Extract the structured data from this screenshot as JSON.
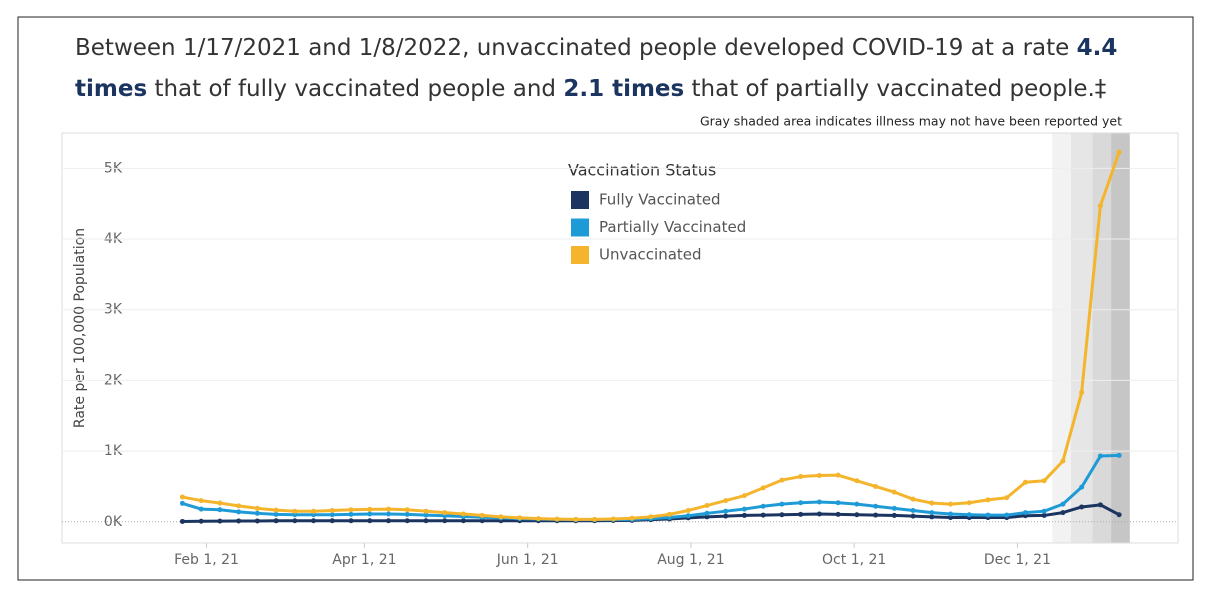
{
  "chart_data": {
    "type": "line",
    "title": [
      "Between 1/17/2021 and 1/8/2022, unvaccinated people developed COVID-19 at a rate ",
      "4.4 times",
      " that of fully vaccinated people and ",
      "2.1 times",
      " that of partially vaccinated people.‡"
    ],
    "annotation": "Gray shaded area indicates illness may not have been reported yet",
    "y_label": "Rate per 100,000 Population",
    "legend_title": "Vaccination Status",
    "x": [
      "2021-01-23",
      "2021-01-30",
      "2021-02-06",
      "2021-02-13",
      "2021-02-20",
      "2021-02-27",
      "2021-03-06",
      "2021-03-13",
      "2021-03-20",
      "2021-03-27",
      "2021-04-03",
      "2021-04-10",
      "2021-04-17",
      "2021-04-24",
      "2021-05-01",
      "2021-05-08",
      "2021-05-15",
      "2021-05-22",
      "2021-05-29",
      "2021-06-05",
      "2021-06-12",
      "2021-06-19",
      "2021-06-26",
      "2021-07-03",
      "2021-07-10",
      "2021-07-17",
      "2021-07-24",
      "2021-07-31",
      "2021-08-07",
      "2021-08-14",
      "2021-08-21",
      "2021-08-28",
      "2021-09-04",
      "2021-09-11",
      "2021-09-18",
      "2021-09-25",
      "2021-10-02",
      "2021-10-09",
      "2021-10-16",
      "2021-10-23",
      "2021-10-30",
      "2021-11-06",
      "2021-11-13",
      "2021-11-20",
      "2021-11-27",
      "2021-12-04",
      "2021-12-11",
      "2021-12-18",
      "2021-12-25",
      "2022-01-01",
      "2022-01-08"
    ],
    "series": [
      {
        "name": "Fully Vaccinated",
        "color": "#1b3560",
        "values": [
          5,
          8,
          10,
          12,
          12,
          14,
          15,
          15,
          15,
          15,
          15,
          15,
          15,
          15,
          15,
          15,
          15,
          15,
          15,
          15,
          15,
          15,
          15,
          18,
          20,
          30,
          40,
          55,
          70,
          80,
          90,
          95,
          100,
          105,
          110,
          105,
          100,
          95,
          90,
          80,
          70,
          60,
          60,
          60,
          60,
          85,
          90,
          130,
          210,
          240,
          100
        ]
      },
      {
        "name": "Partially Vaccinated",
        "color": "#1e9bd7",
        "values": [
          260,
          180,
          170,
          140,
          120,
          105,
          100,
          100,
          100,
          105,
          110,
          110,
          105,
          95,
          85,
          75,
          65,
          55,
          45,
          40,
          35,
          30,
          30,
          32,
          35,
          45,
          60,
          85,
          120,
          150,
          180,
          220,
          250,
          270,
          280,
          270,
          250,
          220,
          190,
          160,
          130,
          110,
          100,
          95,
          95,
          130,
          150,
          250,
          490,
          930,
          940
        ]
      },
      {
        "name": "Unvaccinated",
        "color": "#f4b42b",
        "values": [
          350,
          300,
          265,
          225,
          190,
          165,
          150,
          150,
          160,
          170,
          175,
          180,
          170,
          150,
          130,
          110,
          90,
          70,
          55,
          45,
          38,
          35,
          35,
          40,
          50,
          70,
          105,
          160,
          230,
          300,
          370,
          480,
          590,
          640,
          655,
          660,
          580,
          500,
          420,
          320,
          265,
          250,
          270,
          310,
          340,
          560,
          580,
          860,
          1830,
          4470,
          5230
        ]
      }
    ],
    "shading": [
      {
        "from": "2021-12-14",
        "to": "2021-12-21",
        "color": "#f2f2f2"
      },
      {
        "from": "2021-12-21",
        "to": "2021-12-29",
        "color": "#e6e6e6"
      },
      {
        "from": "2021-12-29",
        "to": "2022-01-05",
        "color": "#d9d9d9"
      },
      {
        "from": "2022-01-05",
        "to": "2022-01-12",
        "color": "#c6c6c6"
      }
    ],
    "xlim": [
      "2020-12-09",
      "2022-01-30"
    ],
    "xticks": [
      {
        "value": "2021-02-01",
        "label": "Feb 1, 21"
      },
      {
        "value": "2021-04-01",
        "label": "Apr 1, 21"
      },
      {
        "value": "2021-06-01",
        "label": "Jun 1, 21"
      },
      {
        "value": "2021-08-01",
        "label": "Aug 1, 21"
      },
      {
        "value": "2021-10-01",
        "label": "Oct 1, 21"
      },
      {
        "value": "2021-12-01",
        "label": "Dec 1, 21"
      }
    ],
    "ylim": [
      -300,
      5500
    ],
    "yticks": [
      {
        "value": 0,
        "label": "0K"
      },
      {
        "value": 1000,
        "label": "1K"
      },
      {
        "value": 2000,
        "label": "2K"
      },
      {
        "value": 3000,
        "label": "3K"
      },
      {
        "value": 4000,
        "label": "4K"
      },
      {
        "value": 5000,
        "label": "5K"
      }
    ],
    "grid": true
  }
}
